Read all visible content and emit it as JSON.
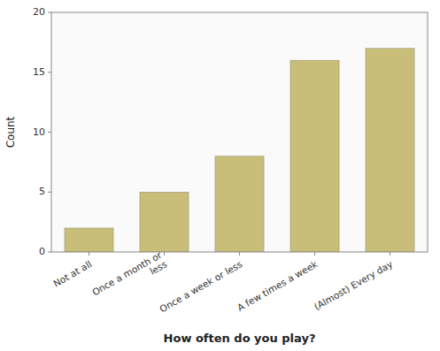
{
  "chart_data": {
    "type": "bar",
    "categories": [
      "Not at all",
      "Once a month or\nless",
      "Once a week or less",
      "A few times a week",
      "(Almost) Every day"
    ],
    "values": [
      2,
      5,
      8,
      16,
      17
    ],
    "color": "#C8BE7A",
    "xlabel": "How often do you play?",
    "ylabel": "Count",
    "ylim": [
      0,
      20
    ],
    "yticks": [
      0,
      5,
      10,
      15,
      20
    ],
    "grid": false
  }
}
